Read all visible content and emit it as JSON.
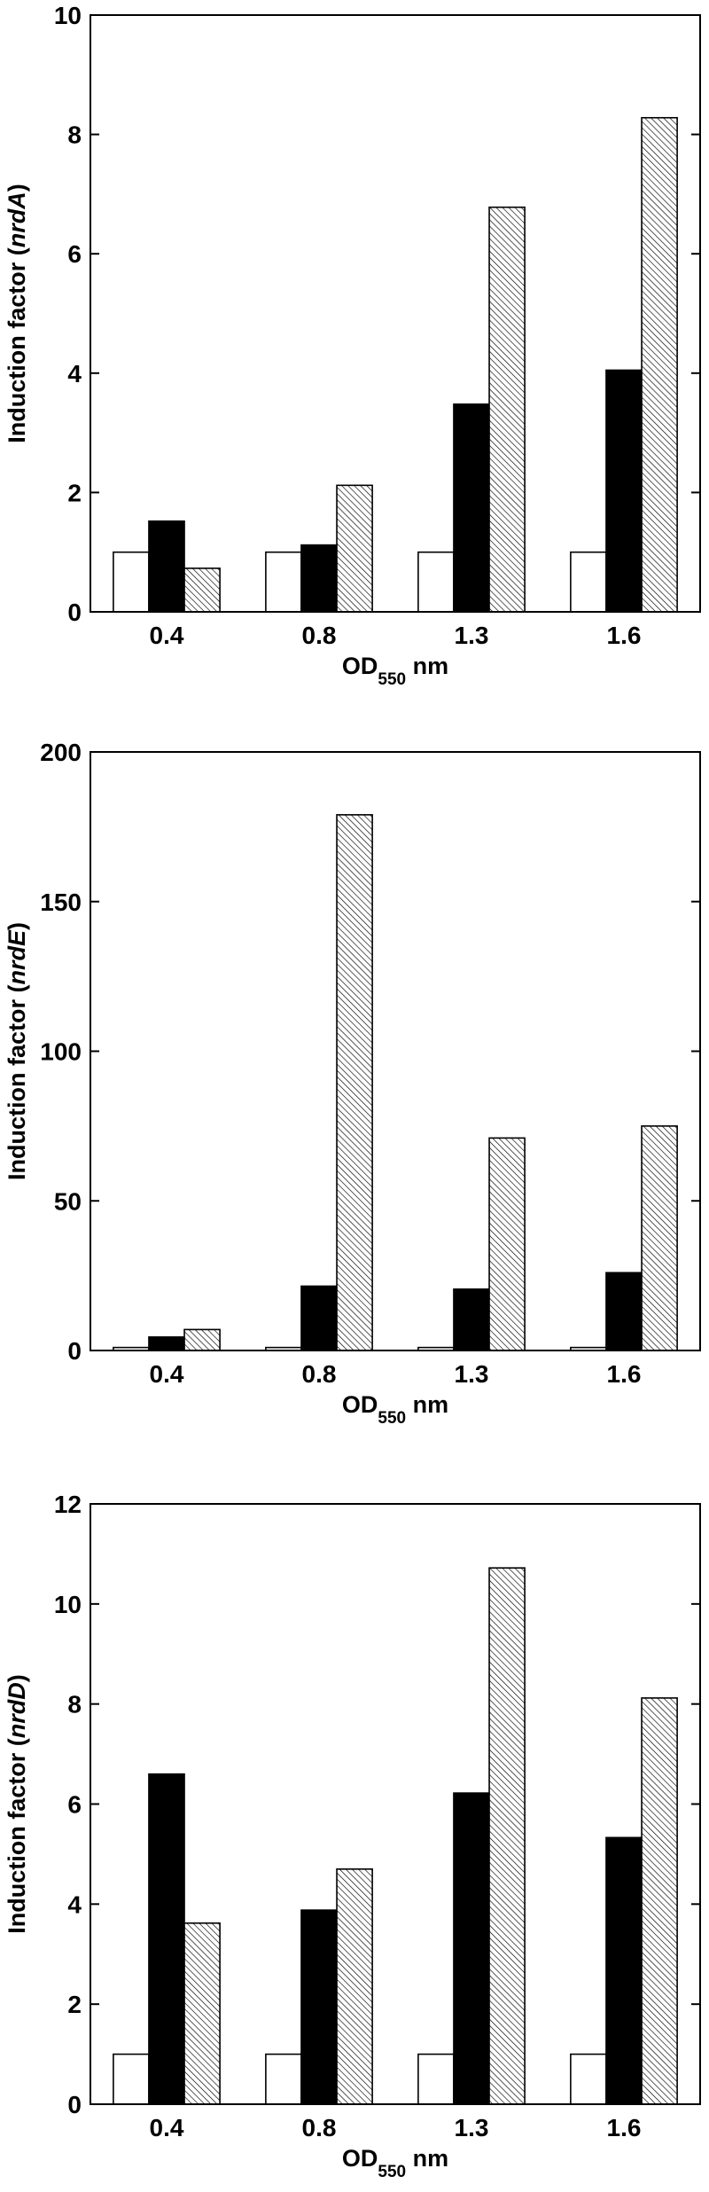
{
  "chart_data": [
    {
      "type": "bar",
      "categories": [
        "0.4",
        "0.8",
        "1.3",
        "1.6"
      ],
      "series": [
        {
          "values": [
            1,
            1,
            1,
            1
          ]
        },
        {
          "values": [
            1.52,
            1.12,
            3.48,
            4.05
          ]
        },
        {
          "values": [
            0.73,
            2.12,
            6.78,
            8.28
          ]
        }
      ],
      "ylabel_prefix": "Induction factor (",
      "ylabel_gene": "nrdA",
      "ylabel_suffix": ")",
      "xlabel_main": "OD",
      "xlabel_sub": "550",
      "xlabel_unit": "nm",
      "ylim": [
        0,
        10
      ],
      "yticks": [
        0,
        2,
        4,
        6,
        8,
        10
      ],
      "fill_styles": [
        "white",
        "black",
        "hatched"
      ]
    },
    {
      "type": "bar",
      "categories": [
        "0.4",
        "0.8",
        "1.3",
        "1.6"
      ],
      "series": [
        {
          "values": [
            1,
            1,
            1,
            1
          ]
        },
        {
          "values": [
            4.5,
            21.5,
            20.5,
            26
          ]
        },
        {
          "values": [
            7,
            179,
            71,
            75
          ]
        }
      ],
      "ylabel_prefix": "Induction factor (",
      "ylabel_gene": "nrdE",
      "ylabel_suffix": ")",
      "xlabel_main": "OD",
      "xlabel_sub": "550",
      "xlabel_unit": "nm",
      "ylim": [
        0,
        200
      ],
      "yticks": [
        0,
        50,
        100,
        150,
        200
      ],
      "fill_styles": [
        "white",
        "black",
        "hatched"
      ]
    },
    {
      "type": "bar",
      "categories": [
        "0.4",
        "0.8",
        "1.3",
        "1.6"
      ],
      "series": [
        {
          "values": [
            1,
            1,
            1,
            1
          ]
        },
        {
          "values": [
            6.6,
            3.88,
            6.22,
            5.33
          ]
        },
        {
          "values": [
            3.62,
            4.7,
            10.72,
            8.12
          ]
        }
      ],
      "ylabel_prefix": "Induction factor (",
      "ylabel_gene": "nrdD",
      "ylabel_suffix": ")",
      "xlabel_main": "OD",
      "xlabel_sub": "550",
      "xlabel_unit": "nm",
      "ylim": [
        0,
        12
      ],
      "yticks": [
        0,
        2,
        4,
        6,
        8,
        10,
        12
      ],
      "fill_styles": [
        "white",
        "black",
        "hatched"
      ]
    }
  ]
}
